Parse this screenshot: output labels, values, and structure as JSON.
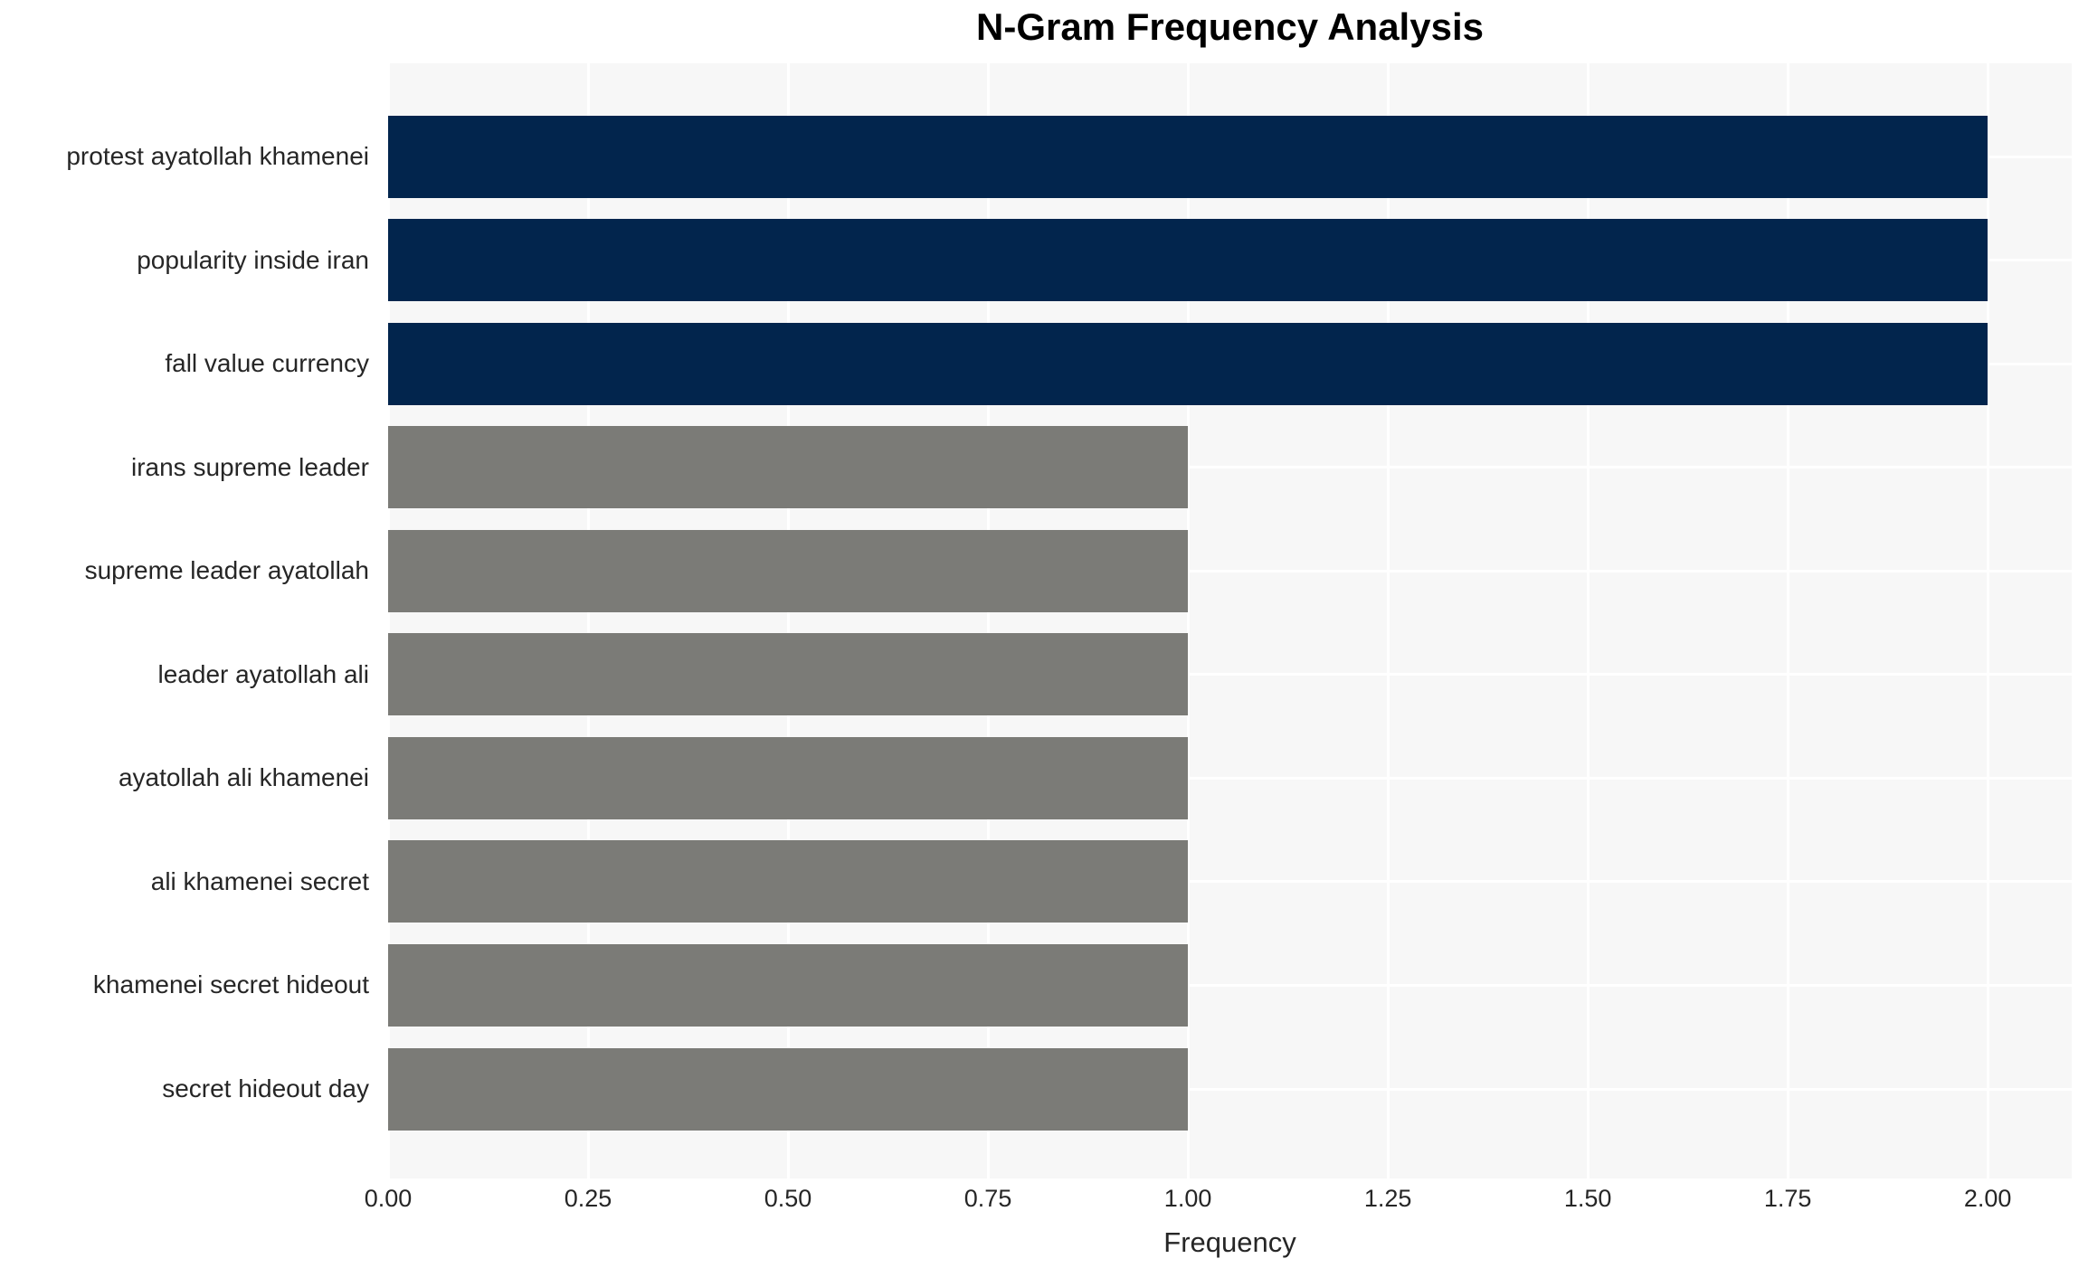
{
  "chart_data": {
    "type": "bar",
    "orientation": "horizontal",
    "title": "N-Gram Frequency Analysis",
    "xlabel": "Frequency",
    "ylabel": "",
    "categories": [
      "protest ayatollah khamenei",
      "popularity inside iran",
      "fall value currency",
      "irans supreme leader",
      "supreme leader ayatollah",
      "leader ayatollah ali",
      "ayatollah ali khamenei",
      "ali khamenei secret",
      "khamenei secret hideout",
      "secret hideout day"
    ],
    "values": [
      2,
      2,
      2,
      1,
      1,
      1,
      1,
      1,
      1,
      1
    ],
    "bar_colors": [
      "#02254d",
      "#02254d",
      "#02254d",
      "#7b7b77",
      "#7b7b77",
      "#7b7b77",
      "#7b7b77",
      "#7b7b77",
      "#7b7b77",
      "#7b7b77"
    ],
    "xlim": [
      0,
      2.105
    ],
    "xticks": [
      0,
      0.25,
      0.5,
      0.75,
      1.0,
      1.25,
      1.5,
      1.75,
      2.0
    ],
    "xtick_labels": [
      "0.00",
      "0.25",
      "0.50",
      "0.75",
      "1.00",
      "1.25",
      "1.50",
      "1.75",
      "2.00"
    ],
    "grid": true,
    "legend": "none",
    "plot_bg_color": "#f7f7f7",
    "grid_color": "#ffffff",
    "page_bg_color": "#ffffff"
  }
}
